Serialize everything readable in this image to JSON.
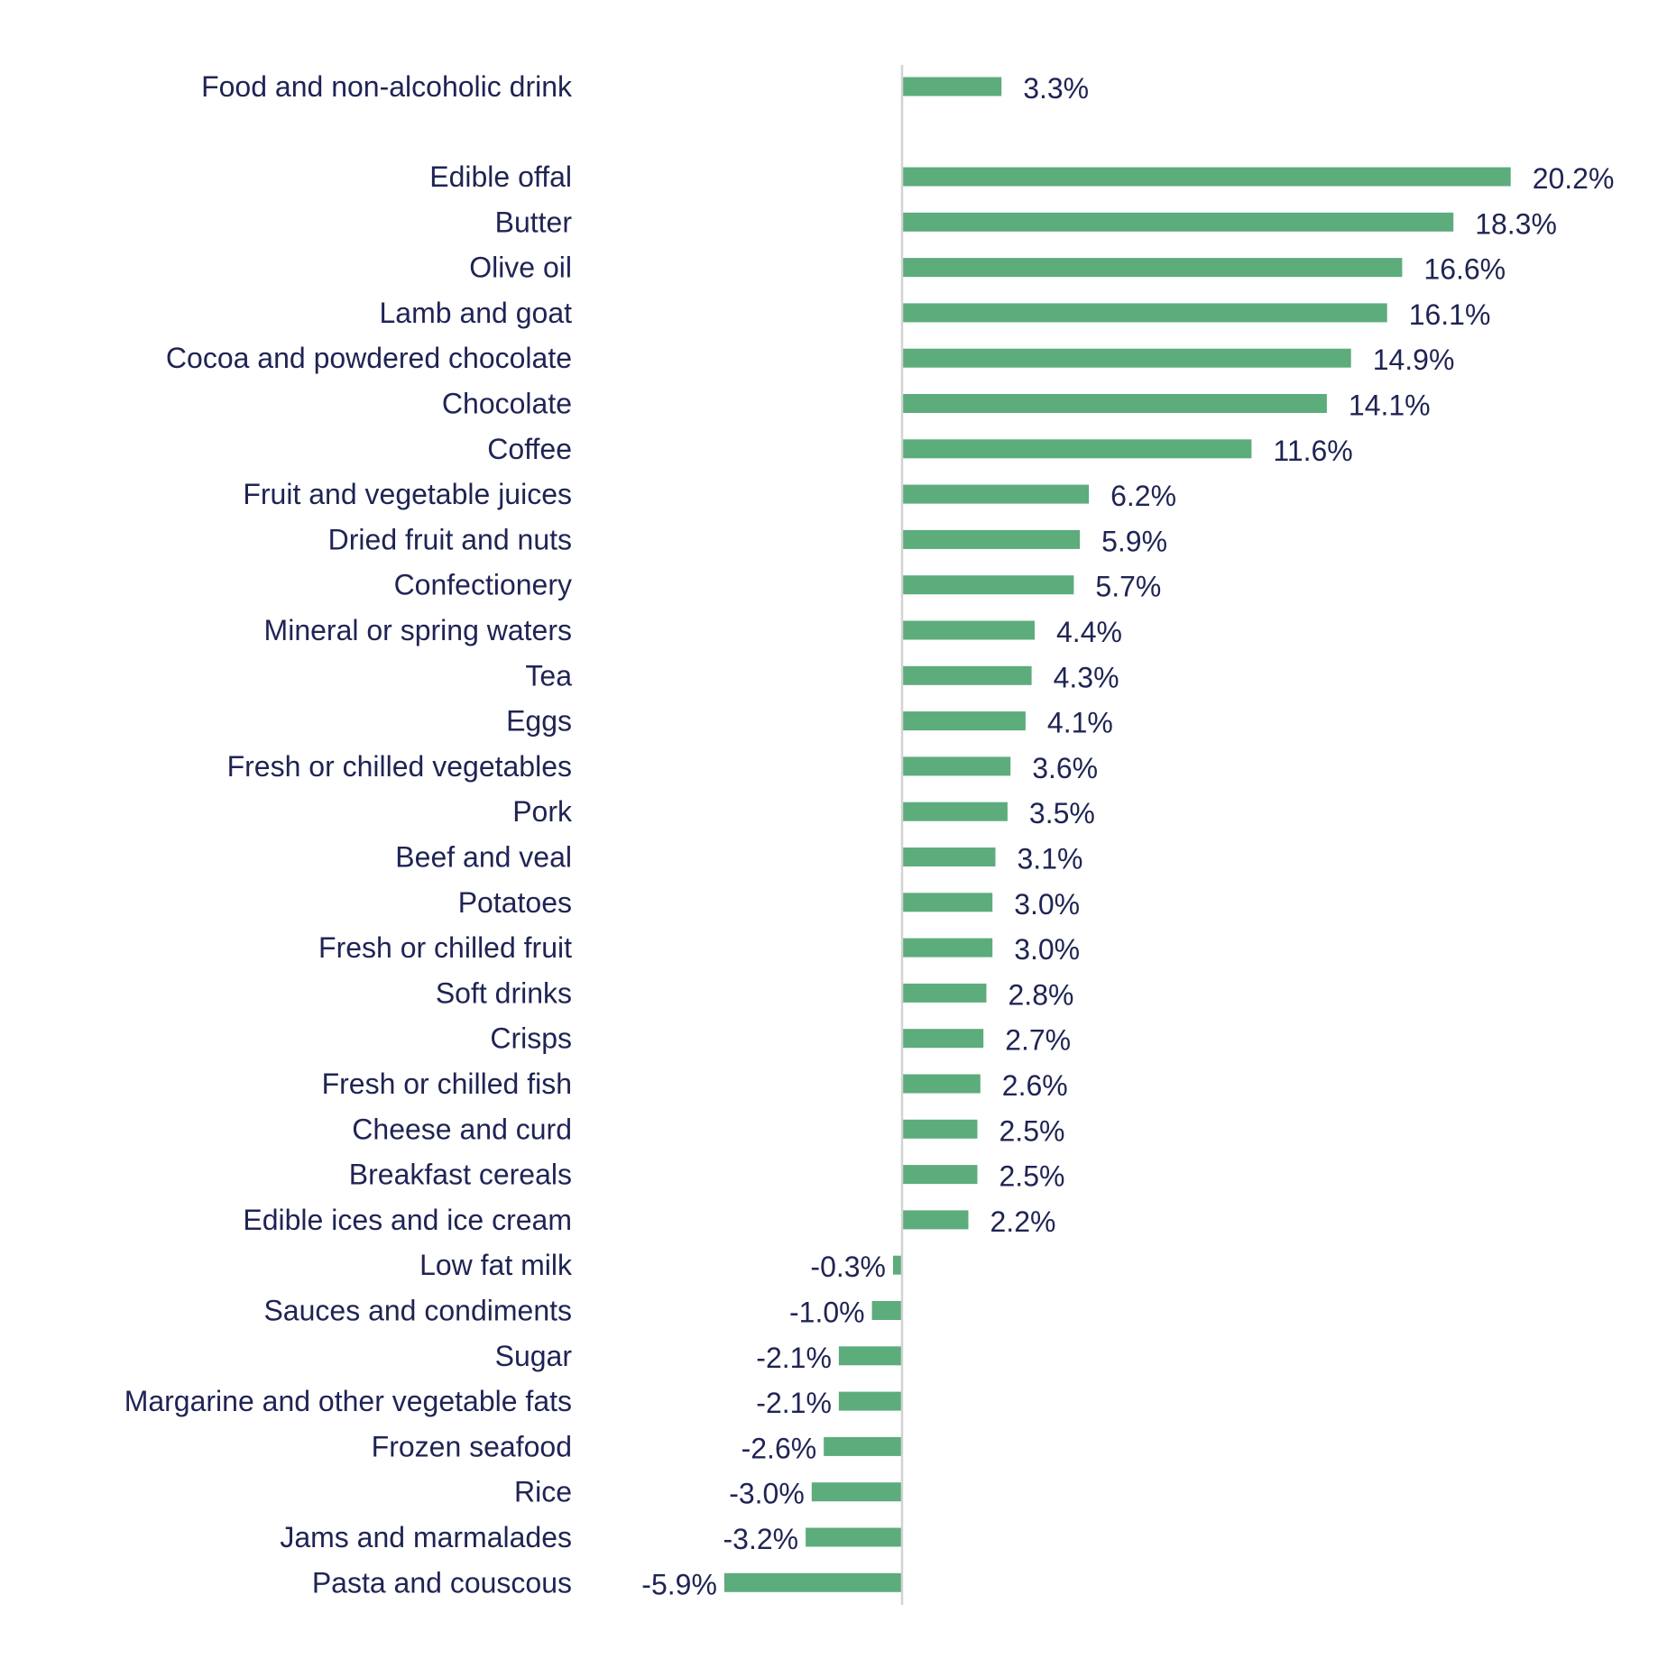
{
  "colors": {
    "bar": "#5dac7c",
    "text": "#1f2454",
    "axis": "#d3d3d3",
    "background": "#ffffff"
  },
  "chart_data": {
    "type": "bar",
    "orientation": "horizontal",
    "title": "",
    "xlabel": "",
    "ylabel": "",
    "grid": false,
    "legend": "none",
    "xlim": [
      -6,
      21
    ],
    "categories": [
      "Food and non-alcoholic drink",
      "Edible offal",
      "Butter",
      "Olive oil",
      "Lamb and goat",
      "Cocoa and powdered chocolate",
      "Chocolate",
      "Coffee",
      "Fruit and vegetable juices",
      "Dried fruit and nuts",
      "Confectionery",
      "Mineral or spring waters",
      "Tea",
      "Eggs",
      "Fresh or chilled vegetables",
      "Pork",
      "Beef and veal",
      "Potatoes",
      "Fresh or chilled fruit",
      "Soft drinks",
      "Crisps",
      "Fresh or chilled fish",
      "Cheese and curd",
      "Breakfast cereals",
      "Edible ices and ice cream",
      "Low fat milk",
      "Sauces and condiments",
      "Sugar",
      "Margarine and other vegetable fats",
      "Frozen seafood",
      "Rice",
      "Jams and marmalades",
      "Pasta and couscous"
    ],
    "values": [
      3.3,
      20.2,
      18.3,
      16.6,
      16.1,
      14.9,
      14.1,
      11.6,
      6.2,
      5.9,
      5.7,
      4.4,
      4.3,
      4.1,
      3.6,
      3.5,
      3.1,
      3.0,
      3.0,
      2.8,
      2.7,
      2.6,
      2.5,
      2.5,
      2.2,
      -0.3,
      -1.0,
      -2.1,
      -2.1,
      -2.6,
      -3.0,
      -3.2,
      -5.9
    ],
    "data_labels": [
      "3.3%",
      "20.2%",
      "18.3%",
      "16.6%",
      "16.1%",
      "14.9%",
      "14.1%",
      "11.6%",
      "6.2%",
      "5.9%",
      "5.7%",
      "4.4%",
      "4.3%",
      "4.1%",
      "3.6%",
      "3.5%",
      "3.1%",
      "3.0%",
      "3.0%",
      "2.8%",
      "2.7%",
      "2.6%",
      "2.5%",
      "2.5%",
      "2.2%",
      "-0.3%",
      "-1.0%",
      "-2.1%",
      "-2.1%",
      "-2.6%",
      "-3.0%",
      "-3.2%",
      "-5.9%"
    ]
  }
}
